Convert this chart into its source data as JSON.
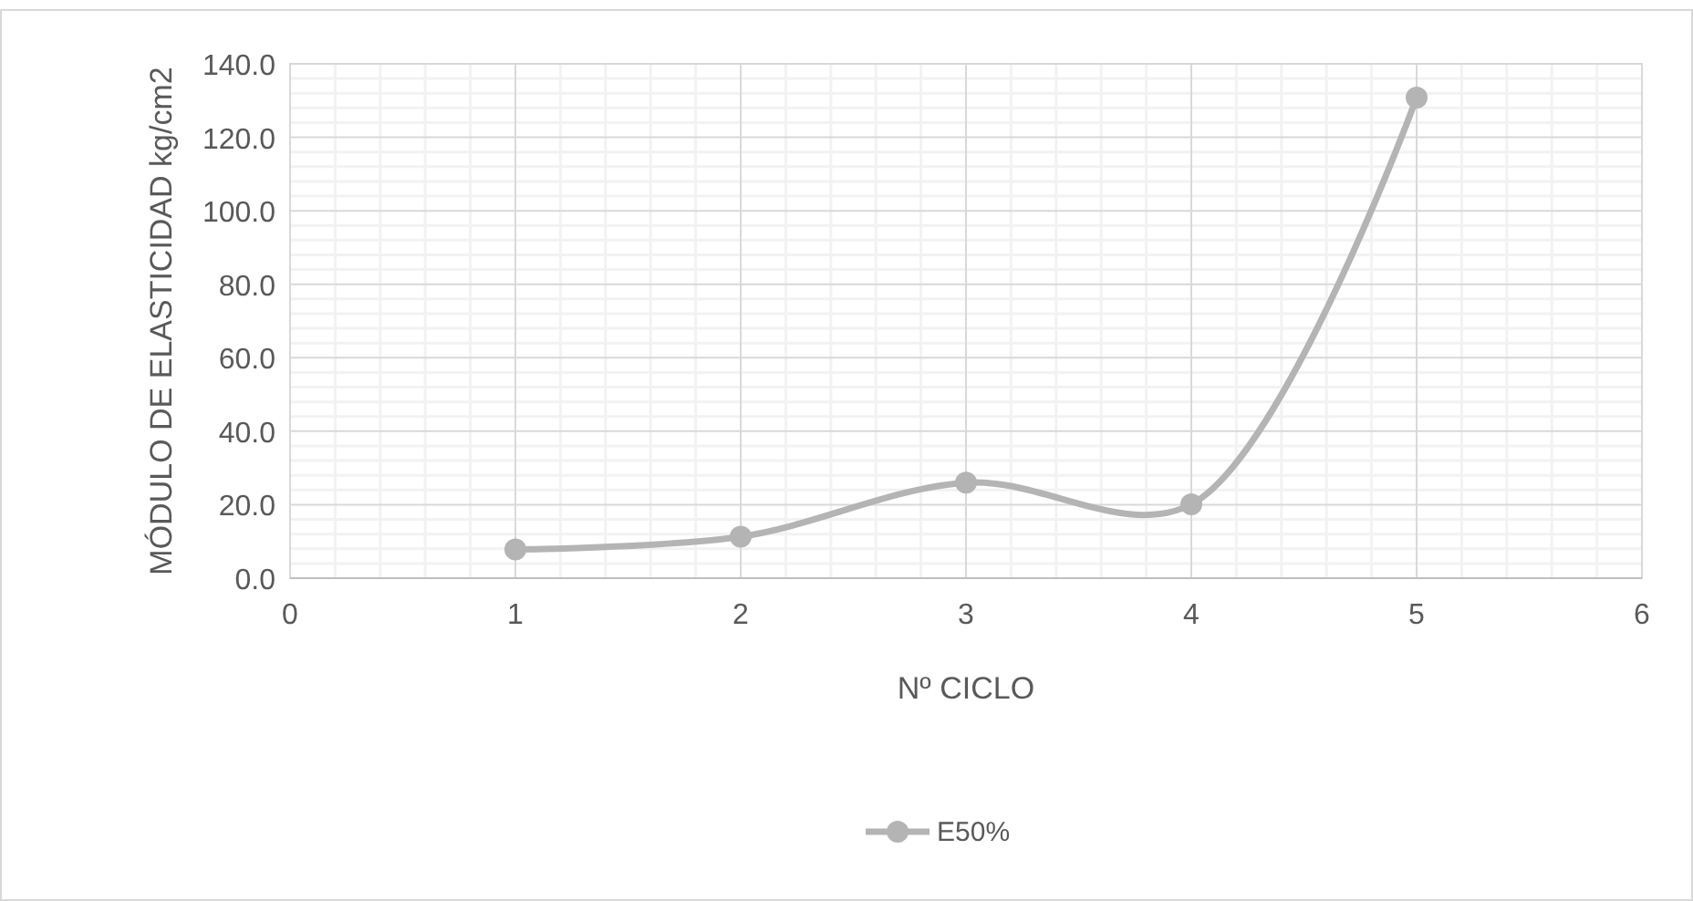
{
  "chart_data": {
    "type": "line",
    "xlabel": "Nº CICLO",
    "ylabel": "MÓDULO DE ELASTICIDAD kg/cm2",
    "x": [
      1,
      2,
      3,
      4,
      5
    ],
    "series": [
      {
        "name": "E50%",
        "color": "#b4b4b4",
        "values": [
          7.8,
          11.3,
          26.0,
          20.1,
          130.8
        ]
      }
    ],
    "xlim": [
      0,
      6
    ],
    "xticks": [
      0,
      1,
      2,
      3,
      4,
      5,
      6
    ],
    "ylim": [
      0,
      140
    ],
    "yticks": [
      {
        "value": 0,
        "label": "0.0"
      },
      {
        "value": 20,
        "label": "20.0"
      },
      {
        "value": 40,
        "label": "40.0"
      },
      {
        "value": 60,
        "label": "60.0"
      },
      {
        "value": 80,
        "label": "80.0"
      },
      {
        "value": 100,
        "label": "100.0"
      },
      {
        "value": 120,
        "label": "120.0"
      },
      {
        "value": 140,
        "label": "140.0"
      }
    ],
    "grid": true,
    "legend": "bottom",
    "marker": "circle",
    "line_style": "solid"
  }
}
